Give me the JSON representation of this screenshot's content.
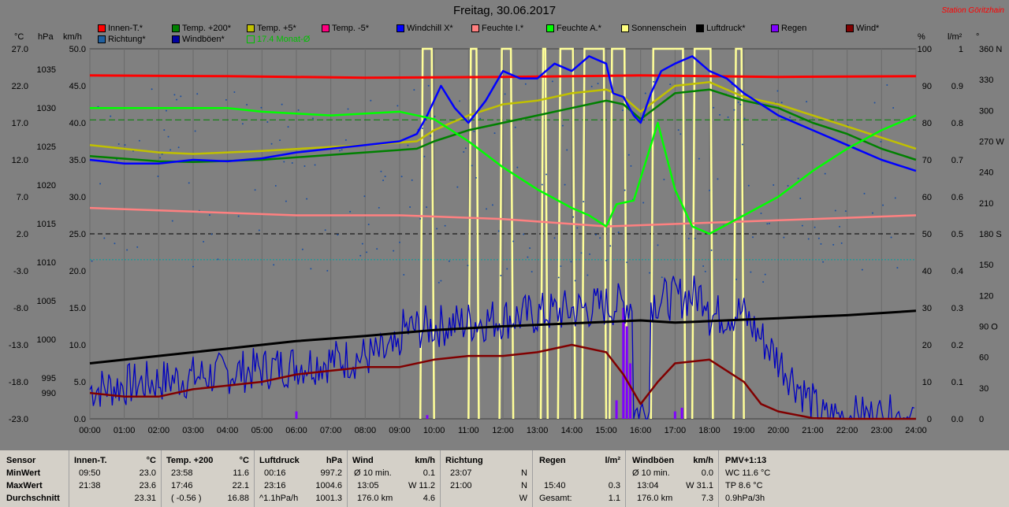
{
  "title": "Freitag, 30.06.2017",
  "station": "Station Göritzhain",
  "legend": [
    {
      "label": "Innen-T.*",
      "color": "#ff0000"
    },
    {
      "label": "Richtung*",
      "color": "#2060a0"
    },
    {
      "label": "Temp. +200*",
      "color": "#008000"
    },
    {
      "label": "Windböen*",
      "color": "#0000a0"
    },
    {
      "label": "Temp. +5*",
      "color": "#c0c000"
    },
    {
      "label": "17.4 Monat-Ø",
      "color": "#00c000"
    },
    {
      "label": "Temp. -5*",
      "color": "#ff0080"
    },
    {
      "label": "Windchill X*",
      "color": "#0000ff"
    },
    {
      "label": "Feuchte I.*",
      "color": "#ff8080"
    },
    {
      "label": "Feuchte A.*",
      "color": "#00ff00"
    },
    {
      "label": "Sonnenschein",
      "color": "#ffff80"
    },
    {
      "label": "Luftdruck*",
      "color": "#000000"
    },
    {
      "label": "Regen",
      "color": "#8000ff"
    },
    {
      "label": "Wind*",
      "color": "#800000"
    }
  ],
  "units": {
    "c": "°C",
    "hpa": "hPa",
    "kmh": "km/h",
    "pct": "%",
    "lm2": "l/m²",
    "deg": "°"
  },
  "chart_data": {
    "type": "line",
    "x_ticks": [
      "00:00",
      "01:00",
      "02:00",
      "03:00",
      "04:00",
      "05:00",
      "06:00",
      "07:00",
      "08:00",
      "09:00",
      "10:00",
      "11:00",
      "12:00",
      "13:00",
      "14:00",
      "15:00",
      "16:00",
      "17:00",
      "18:00",
      "19:00",
      "20:00",
      "21:00",
      "22:00",
      "23:00",
      "24:00"
    ],
    "axis_temp": [
      "27.0",
      "22.0",
      "17.0",
      "12.0",
      "7.0",
      "2.0",
      "-3.0",
      "-8.0",
      "-13.0",
      "-18.0",
      "-23.0"
    ],
    "axis_hpa": [
      "1035",
      "1030",
      "1025",
      "1020",
      "1015",
      "1010",
      "1005",
      "1000",
      "995",
      "990"
    ],
    "axis_kmh": [
      "50.0",
      "45.0",
      "40.0",
      "35.0",
      "30.0",
      "25.0",
      "20.0",
      "15.0",
      "10.0",
      "5.0",
      "0.0"
    ],
    "axis_pct": [
      "100",
      "90",
      "80",
      "70",
      "60",
      "50",
      "40",
      "30",
      "20",
      "10",
      "0"
    ],
    "axis_lm2": [
      "1",
      "0.9",
      "0.8",
      "0.7",
      "0.6",
      "0.5",
      "0.4",
      "0.3",
      "0.2",
      "0.1",
      "0.0"
    ],
    "axis_deg": [
      "360 N",
      "330",
      "300",
      "270 W",
      "240",
      "210",
      "180 S",
      "150",
      "120",
      "90 O",
      "60",
      "30",
      "0"
    ],
    "series": [
      {
        "name": "Innen-T.*",
        "color": "#ff0000",
        "unit": "°C",
        "x": [
          0,
          4,
          8,
          12,
          16,
          20,
          24
        ],
        "y": [
          23.4,
          23.3,
          23.1,
          23.2,
          23.4,
          23.2,
          23.3
        ]
      },
      {
        "name": "Temp. +200*",
        "color": "#008000",
        "unit": "°C",
        "x": [
          0,
          2,
          3,
          5,
          8,
          9.5,
          10,
          11,
          12,
          13,
          14,
          15,
          15.5,
          16,
          17,
          18,
          19,
          20,
          21,
          22,
          23,
          24
        ],
        "y": [
          12.5,
          11.8,
          11.7,
          12,
          13,
          13.5,
          14.5,
          16,
          17,
          18,
          19,
          20,
          19.5,
          17.5,
          21,
          21.5,
          20,
          19,
          17,
          15.5,
          13.5,
          12
        ]
      },
      {
        "name": "Temp. +5*",
        "color": "#c0c000",
        "unit": "°C",
        "x": [
          0,
          2,
          3,
          5,
          8,
          9.5,
          10,
          11,
          12,
          13,
          14,
          15,
          15.5,
          16,
          17,
          18,
          19,
          20,
          21,
          22,
          23,
          24
        ],
        "y": [
          14,
          13,
          12.8,
          13.2,
          14,
          14.5,
          16,
          18,
          19.5,
          20,
          21,
          21.5,
          20.5,
          18.5,
          22,
          22.5,
          20.5,
          19.5,
          18,
          16.5,
          15,
          13.5
        ]
      },
      {
        "name": "Windchill X*",
        "color": "#0000ff",
        "unit": "°C",
        "x": [
          0,
          1,
          2,
          3,
          4,
          5,
          6,
          7,
          8,
          9,
          9.5,
          9.8,
          10.2,
          10.6,
          11,
          11.5,
          12,
          12.5,
          13,
          13.5,
          14,
          14.5,
          15,
          15.2,
          15.5,
          15.8,
          16,
          16.3,
          16.6,
          17,
          17.5,
          18,
          18.5,
          19,
          20,
          21,
          22,
          23,
          24
        ],
        "y": [
          12,
          11.5,
          11.5,
          12,
          11.8,
          12.2,
          13,
          13.5,
          14,
          14.5,
          15.5,
          18,
          22,
          19,
          17,
          20,
          24,
          23,
          23,
          25,
          24,
          26,
          25,
          21,
          20.5,
          18,
          17,
          21,
          24,
          25,
          26,
          24,
          23,
          21,
          18,
          16,
          14,
          12,
          10.5
        ]
      },
      {
        "name": "Feuchte I.*",
        "color": "#ff8080",
        "unit": "%",
        "x": [
          0,
          3,
          6,
          9,
          12,
          15,
          18,
          21,
          24
        ],
        "y": [
          57,
          56,
          55,
          55,
          54,
          52,
          53,
          54,
          55
        ]
      },
      {
        "name": "Feuchte A.*",
        "color": "#00ff00",
        "unit": "%",
        "x": [
          0,
          4,
          5,
          7,
          9,
          10,
          11,
          12,
          13,
          14,
          14.5,
          15,
          15.3,
          15.8,
          16.5,
          17,
          17.5,
          18,
          19,
          20,
          21,
          22,
          23,
          24
        ],
        "y": [
          84,
          84,
          83,
          82,
          83,
          81,
          75,
          68,
          62,
          57,
          55,
          52,
          58,
          59,
          80,
          62,
          52,
          50,
          55,
          60,
          67,
          73,
          78,
          82
        ]
      },
      {
        "name": "Luftdruck*",
        "color": "#000000",
        "unit": "hPa",
        "x": [
          0,
          2,
          4,
          6,
          8,
          10,
          12,
          13,
          14,
          15,
          16,
          17,
          18,
          19,
          20,
          21,
          22,
          23,
          24
        ],
        "y": [
          997.5,
          998.5,
          999.5,
          1000.5,
          1001.2,
          1002,
          1002.5,
          1002.7,
          1002.9,
          1003.1,
          1003.3,
          1003,
          1003.2,
          1003.4,
          1003.6,
          1003.8,
          1004,
          1004.3,
          1004.6
        ]
      },
      {
        "name": "Wind*",
        "color": "#800000",
        "unit": "km/h",
        "x": [
          0,
          1,
          2,
          3,
          4,
          5,
          6,
          7,
          8,
          9,
          10,
          11,
          12,
          13,
          14,
          15,
          15.5,
          16,
          16.5,
          17,
          18,
          19,
          19.5,
          20,
          21,
          22,
          24
        ],
        "y": [
          3.5,
          3,
          3,
          4,
          4.5,
          5,
          6,
          6.5,
          7,
          7,
          8,
          8.5,
          8.5,
          9,
          10,
          9,
          6,
          2,
          5,
          7.5,
          8,
          5,
          2,
          1,
          0.1,
          0,
          0
        ]
      }
    ]
  },
  "table": {
    "sensor": {
      "h": "Sensor",
      "r1": "MinWert",
      "r2": "MaxWert",
      "r3": "Durchschnitt"
    },
    "innen": {
      "h": "Innen-T.",
      "u": "°C",
      "r1t": "09:50",
      "r1v": "23.0",
      "r2t": "21:38",
      "r2v": "23.6",
      "r3v": "23.31"
    },
    "temp": {
      "h": "Temp. +200",
      "u": "°C",
      "r1t": "23:58",
      "r1v": "11.6",
      "r2t": "17:46",
      "r2v": "22.1",
      "r3t": "( -0.56 )",
      "r3v": "16.88"
    },
    "druck": {
      "h": "Luftdruck",
      "u": "hPa",
      "r1t": "00:16",
      "r1v": "997.2",
      "r2t": "23:16",
      "r2v": "1004.6",
      "r3t": "^1.1hPa/h",
      "r3v": "1001.3"
    },
    "wind": {
      "h": "Wind",
      "u": "km/h",
      "r1t": "Ø 10 min.",
      "r1v": "0.1",
      "r2t": "13:05",
      "r2m": "W 11.2",
      "r3t": "176.0 km",
      "r3v": "4.6"
    },
    "richtung": {
      "h": "Richtung",
      "r1t": "23:07",
      "r1v": "N",
      "r2t": "21:00",
      "r2v": "N",
      "r3v": "W"
    },
    "regen": {
      "h": "Regen",
      "u": "l/m²",
      "r2t": "15:40",
      "r2v": "0.3",
      "r3t": "Gesamt:",
      "r3v": "1.1"
    },
    "boeen": {
      "h": "Windböen",
      "u": "km/h",
      "r1t": "Ø 10 min.",
      "r1v": "0.0",
      "r2t": "13:04",
      "r2m": "W 31.1",
      "r3t": "176.0 km",
      "r3v": "7.3"
    },
    "pmv": {
      "h": "PMV+1:13",
      "r1": "WC 11.6 °C",
      "r2": "TP 8.6 °C",
      "r3": "0.9hPa/3h"
    }
  }
}
